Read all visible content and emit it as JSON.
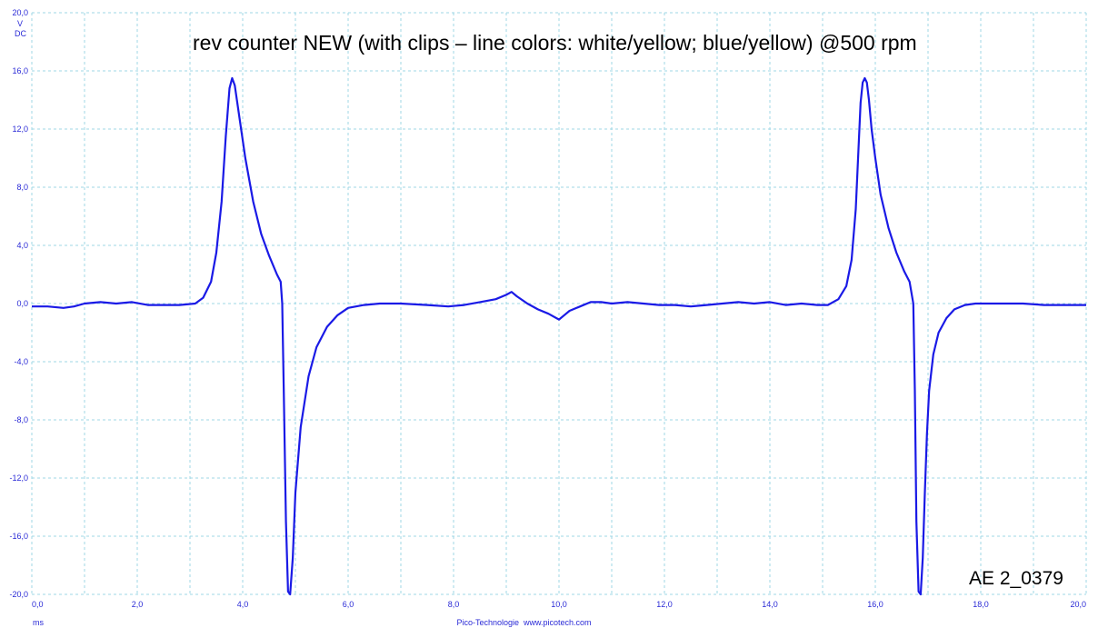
{
  "chart_data": {
    "type": "line",
    "title": "rev counter NEW (with clips – line colors: white/yellow; blue/yellow) @500 rpm",
    "ylabel_unit": "V",
    "ylabel_coupling": "DC",
    "xlabel": "ms",
    "xlim": [
      0,
      20
    ],
    "ylim": [
      -20,
      20
    ],
    "grid": true,
    "x_ticks": [
      "0,0",
      "2,0",
      "4,0",
      "6,0",
      "8,0",
      "10,0",
      "12,0",
      "14,0",
      "16,0",
      "18,0",
      "20,0"
    ],
    "y_ticks": [
      "20,0",
      "16,0",
      "12,0",
      "8,0",
      "4,0",
      "0,0",
      "-4,0",
      "-8,0",
      "-12,0",
      "-16,0",
      "-20,0"
    ],
    "line_color": "#1a1ae6",
    "series": [
      {
        "x": [
          0,
          0.3,
          0.6,
          0.8,
          1.0,
          1.3,
          1.6,
          1.9,
          2.2,
          2.5,
          2.8,
          3.1,
          3.25,
          3.4,
          3.5,
          3.6,
          3.68,
          3.75,
          3.8,
          3.85,
          3.95,
          4.05,
          4.2,
          4.35,
          4.5,
          4.65,
          4.72,
          4.75,
          4.78,
          4.82,
          4.86,
          4.9,
          4.95,
          5.0,
          5.1,
          5.25,
          5.4,
          5.6,
          5.8,
          6.0,
          6.3,
          6.6,
          7.0,
          7.5,
          7.9,
          8.2,
          8.5,
          8.8,
          9.0,
          9.1,
          9.2,
          9.4,
          9.6,
          9.8,
          10.0,
          10.1,
          10.2,
          10.4,
          10.6,
          10.8,
          11.0,
          11.3,
          11.6,
          11.9,
          12.2,
          12.5,
          12.8,
          13.1,
          13.4,
          13.7,
          14.0,
          14.3,
          14.6,
          14.9,
          15.1,
          15.3,
          15.45,
          15.55,
          15.63,
          15.68,
          15.72,
          15.76,
          15.8,
          15.84,
          15.88,
          15.93,
          16.0,
          16.1,
          16.25,
          16.4,
          16.55,
          16.65,
          16.72,
          16.75,
          16.78,
          16.82,
          16.86,
          16.9,
          16.94,
          16.98,
          17.02,
          17.1,
          17.2,
          17.35,
          17.5,
          17.7,
          17.9,
          18.1,
          18.4,
          18.8,
          19.2,
          19.6,
          20.0
        ],
        "y": [
          -0.2,
          -0.2,
          -0.3,
          -0.2,
          0.0,
          0.1,
          0.0,
          0.1,
          -0.1,
          -0.1,
          -0.1,
          0.0,
          0.4,
          1.5,
          3.5,
          7.0,
          11.5,
          14.8,
          15.5,
          15.0,
          12.5,
          10.0,
          7.0,
          4.8,
          3.3,
          2.0,
          1.5,
          0.0,
          -6.0,
          -15.0,
          -19.8,
          -20.0,
          -17.5,
          -13.0,
          -8.5,
          -5.0,
          -3.0,
          -1.6,
          -0.8,
          -0.3,
          -0.1,
          0.0,
          0.0,
          -0.1,
          -0.2,
          -0.1,
          0.1,
          0.3,
          0.6,
          0.8,
          0.5,
          0.0,
          -0.4,
          -0.7,
          -1.1,
          -0.8,
          -0.5,
          -0.2,
          0.1,
          0.1,
          0.0,
          0.1,
          0.0,
          -0.1,
          -0.1,
          -0.2,
          -0.1,
          0.0,
          0.1,
          0.0,
          0.1,
          -0.1,
          0.0,
          -0.1,
          -0.1,
          0.3,
          1.2,
          3.0,
          6.5,
          10.5,
          13.8,
          15.2,
          15.5,
          15.2,
          14.0,
          12.0,
          10.0,
          7.5,
          5.2,
          3.5,
          2.2,
          1.5,
          0.0,
          -6.0,
          -15.0,
          -19.8,
          -20.0,
          -17.5,
          -13.0,
          -9.0,
          -6.0,
          -3.5,
          -2.0,
          -1.0,
          -0.4,
          -0.1,
          0.0,
          0.0,
          0.0,
          0.0,
          -0.1,
          -0.1,
          -0.1
        ]
      }
    ],
    "footer_left": "Pico-Technologie",
    "footer_right": "www.picotech.com",
    "tag": "AE 2_0379"
  }
}
